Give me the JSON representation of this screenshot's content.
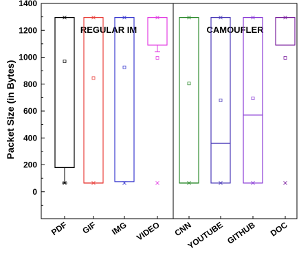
{
  "chart_data": {
    "type": "box",
    "ylabel": "Packet Size (in Bytes)",
    "xlabel": "",
    "ylim": [
      -200,
      1400
    ],
    "yticks": [
      0,
      200,
      400,
      600,
      800,
      1000,
      1200,
      1400
    ],
    "grid": false,
    "groups": [
      {
        "title": "REGULAR IM",
        "categories": [
          "PDF",
          "GIF",
          "IMG",
          "VIDEO"
        ]
      },
      {
        "title": "CAMOUFLER",
        "categories": [
          "CNN",
          "YOUTUBE",
          "GITHUB",
          "DOC"
        ]
      }
    ],
    "series": [
      {
        "category": "PDF",
        "color": "#000000",
        "q1": 180,
        "median": 180,
        "q3": 1295,
        "mean": 970,
        "min": 65,
        "max": 1295,
        "whisker_low": 65,
        "whisker_high": null
      },
      {
        "category": "GIF",
        "color": "#e8413c",
        "q1": 65,
        "median": 65,
        "q3": 1295,
        "mean": 845,
        "min": 65,
        "max": 1295,
        "whisker_low": null,
        "whisker_high": null
      },
      {
        "category": "IMG",
        "color": "#3b3bcf",
        "q1": 75,
        "median": 75,
        "q3": 1295,
        "mean": 925,
        "min": 65,
        "max": 1295,
        "whisker_low": null,
        "whisker_high": null
      },
      {
        "category": "VIDEO",
        "color": "#e23ee2",
        "q1": 1090,
        "median": 1090,
        "q3": 1295,
        "mean": 995,
        "min": 65,
        "max": 1295,
        "whisker_low": 1040,
        "whisker_high": null
      },
      {
        "category": "CNN",
        "color": "#2e8b2e",
        "q1": 65,
        "median": 65,
        "q3": 1295,
        "mean": 805,
        "min": 65,
        "max": 1295,
        "whisker_low": null,
        "whisker_high": null
      },
      {
        "category": "YOUTUBE",
        "color": "#4a3ab8",
        "q1": 65,
        "median": 360,
        "q3": 1295,
        "mean": 680,
        "min": 65,
        "max": 1295,
        "whisker_low": null,
        "whisker_high": null
      },
      {
        "category": "GITHUB",
        "color": "#8a3bd6",
        "q1": 65,
        "median": 570,
        "q3": 1295,
        "mean": 695,
        "min": 65,
        "max": 1295,
        "whisker_low": null,
        "whisker_high": null
      },
      {
        "category": "DOC",
        "color": "#7a1f9e",
        "q1": 1090,
        "median": 1090,
        "q3": 1295,
        "mean": 995,
        "min": 65,
        "max": 1295,
        "whisker_low": null,
        "whisker_high": null
      }
    ]
  }
}
